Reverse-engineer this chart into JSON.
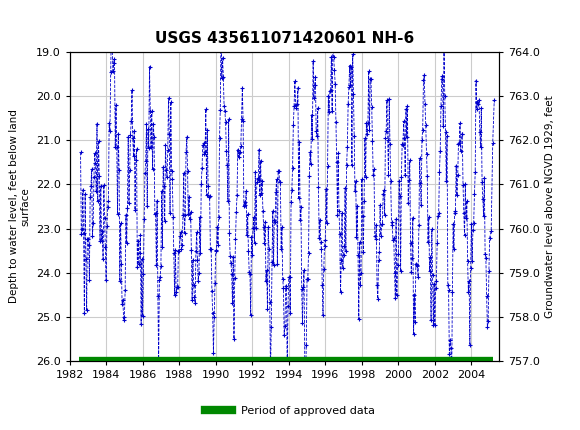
{
  "title": "USGS 435611071420601 NH-6",
  "ylabel_left": "Depth to water level, feet below land\nsurface",
  "ylabel_right": "Groundwater level above NGVD 1929, feet",
  "xlabel": "",
  "ylim_left": [
    26.0,
    19.0
  ],
  "ylim_right": [
    757.0,
    764.0
  ],
  "xlim": [
    1982,
    2005.5
  ],
  "xticks": [
    1982,
    1984,
    1986,
    1988,
    1990,
    1992,
    1994,
    1996,
    1998,
    2000,
    2002,
    2004
  ],
  "yticks_left": [
    19.0,
    20.0,
    21.0,
    22.0,
    23.0,
    24.0,
    25.0,
    26.0
  ],
  "yticks_right": [
    757.0,
    758.0,
    759.0,
    760.0,
    761.0,
    762.0,
    763.0,
    764.0
  ],
  "data_color": "#0000cc",
  "approved_color": "#008800",
  "header_color": "#006644",
  "background_color": "#ffffff",
  "plot_bg_color": "#ffffff",
  "grid_color": "#cccccc",
  "legend_label": "Period of approved data"
}
